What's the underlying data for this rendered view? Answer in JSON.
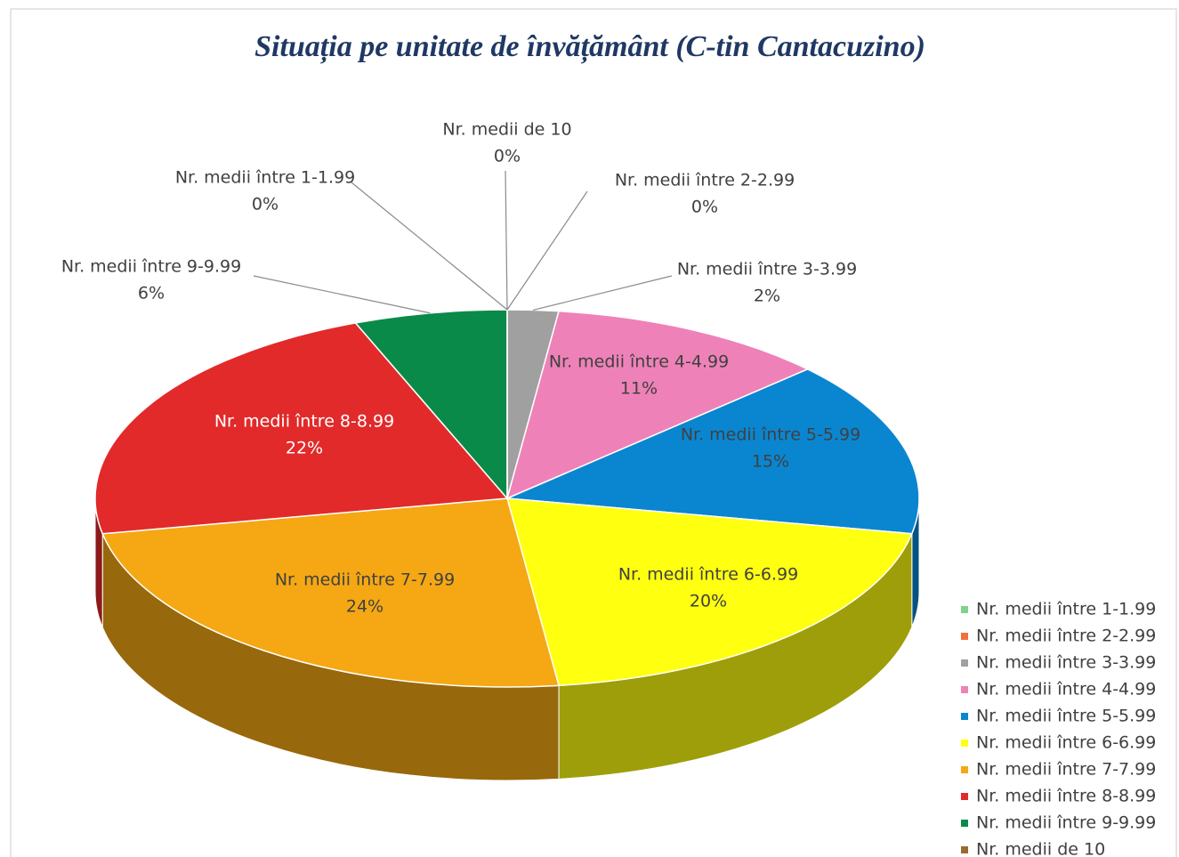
{
  "chart_data": {
    "type": "pie",
    "title": "Situația pe unitate de învățământ (C-tin Cantacuzino)",
    "categories": [
      "Nr. medii între 1-1.99",
      "Nr. medii între 2-2.99",
      "Nr. medii între 3-3.99",
      "Nr. medii între 4-4.99",
      "Nr. medii între 5-5.99",
      "Nr. medii între 6-6.99",
      "Nr. medii între 7-7.99",
      "Nr. medii între 8-8.99",
      "Nr. medii între 9-9.99",
      "Nr. medii de 10"
    ],
    "values": [
      0,
      0,
      2,
      11,
      15,
      20,
      24,
      22,
      6,
      0
    ],
    "value_labels": [
      "0%",
      "0%",
      "2%",
      "11%",
      "15%",
      "20%",
      "24%",
      "22%",
      "6%",
      "0%"
    ],
    "colors": [
      "#7fd48a",
      "#f0703a",
      "#a0a0a0",
      "#ee82b8",
      "#0a86d0",
      "#ffff10",
      "#f5a814",
      "#e22a2a",
      "#0a8a48",
      "#9a6a32"
    ],
    "legend": "right"
  }
}
